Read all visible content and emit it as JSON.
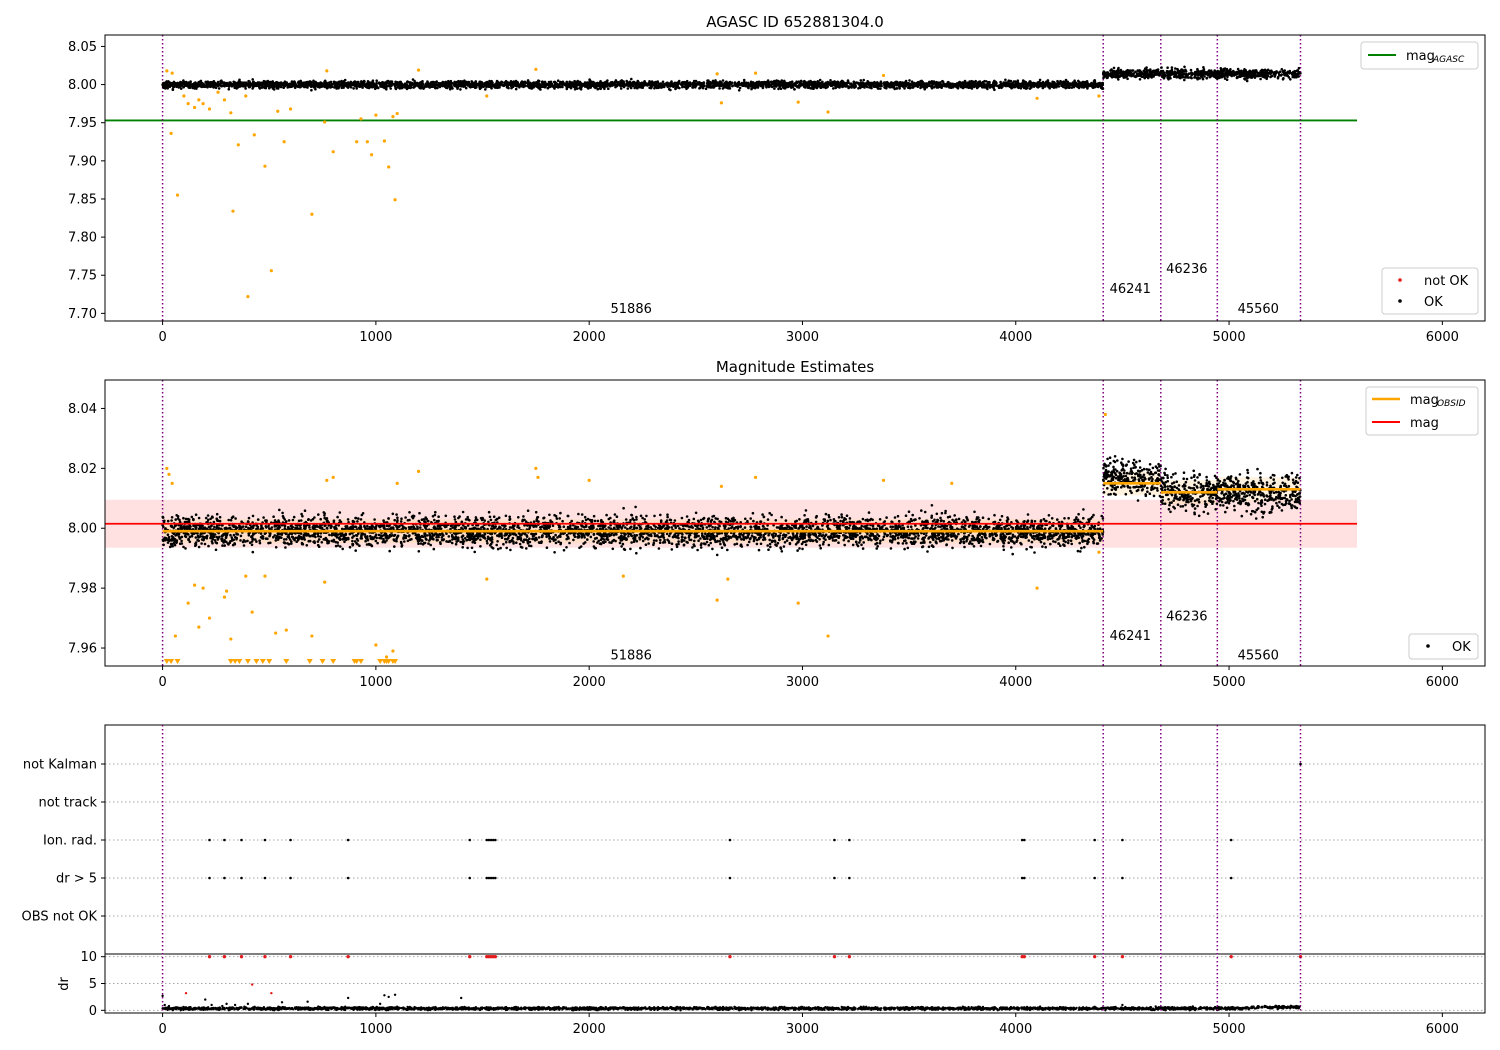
{
  "colors": {
    "ok": "#000000",
    "not_ok": "#e41a1c",
    "orange": "#ffa500",
    "green": "#008000",
    "red": "#ff0000",
    "obs_line": "#800080",
    "band_red": "#ffb3b3",
    "band_orange": "#ffd9a0"
  },
  "chart_data": [
    {
      "id": "agasc",
      "type": "scatter",
      "title": "AGASC ID 652881304.0",
      "xlim": [
        -270,
        6200
      ],
      "ylim": [
        7.69,
        8.065
      ],
      "xticks": [
        0,
        1000,
        2000,
        3000,
        4000,
        5000,
        6000
      ],
      "yticks": [
        7.7,
        7.75,
        7.8,
        7.85,
        7.9,
        7.95,
        8.0,
        8.05
      ],
      "ytick_labels": [
        "7.70",
        "7.75",
        "7.80",
        "7.85",
        "7.90",
        "7.95",
        "8.00",
        "8.05"
      ],
      "obs_lines": [
        0,
        4410,
        4680,
        4945,
        5335
      ],
      "obs_labels": [
        {
          "text": "51886",
          "x": 2100,
          "y": 7.706
        },
        {
          "text": "46241",
          "x": 4440,
          "y": 7.732
        },
        {
          "text": "46236",
          "x": 4705,
          "y": 7.758
        },
        {
          "text": "45560",
          "x": 5040,
          "y": 7.706
        }
      ],
      "hline": {
        "value": 7.953,
        "x_end": 5600,
        "label": "mag",
        "label_sub": "AGASC"
      },
      "legend_markers": [
        "not OK",
        "OK"
      ],
      "bands": [
        {
          "x0": 0,
          "x1": 4410,
          "mean": 8.0,
          "spread": 0.006
        },
        {
          "x0": 4410,
          "x1": 5335,
          "mean": 8.014,
          "spread": 0.008
        }
      ],
      "outliers": [
        [
          40,
          7.936
        ],
        [
          70,
          7.855
        ],
        [
          100,
          7.985
        ],
        [
          120,
          7.975
        ],
        [
          150,
          7.97
        ],
        [
          170,
          7.98
        ],
        [
          190,
          7.975
        ],
        [
          220,
          7.968
        ],
        [
          260,
          7.99
        ],
        [
          290,
          7.98
        ],
        [
          320,
          7.963
        ],
        [
          330,
          7.834
        ],
        [
          355,
          7.921
        ],
        [
          390,
          7.985
        ],
        [
          400,
          7.722
        ],
        [
          430,
          7.934
        ],
        [
          480,
          7.893
        ],
        [
          510,
          7.756
        ],
        [
          540,
          7.965
        ],
        [
          570,
          7.925
        ],
        [
          600,
          7.968
        ],
        [
          700,
          7.83
        ],
        [
          760,
          7.951
        ],
        [
          800,
          7.912
        ],
        [
          910,
          7.925
        ],
        [
          930,
          7.955
        ],
        [
          960,
          7.925
        ],
        [
          980,
          7.908
        ],
        [
          1000,
          7.96
        ],
        [
          1040,
          7.926
        ],
        [
          1060,
          7.892
        ],
        [
          1080,
          7.958
        ],
        [
          1090,
          7.849
        ],
        [
          1100,
          7.962
        ],
        [
          1520,
          7.985
        ],
        [
          2620,
          7.976
        ],
        [
          2980,
          7.977
        ],
        [
          3120,
          7.964
        ],
        [
          4100,
          7.982
        ],
        [
          4390,
          7.985
        ],
        [
          20,
          8.018
        ],
        [
          45,
          8.015
        ],
        [
          770,
          8.018
        ],
        [
          1200,
          8.019
        ],
        [
          1750,
          8.02
        ],
        [
          2600,
          8.014
        ],
        [
          2780,
          8.015
        ],
        [
          3380,
          8.012
        ]
      ]
    },
    {
      "id": "estimates",
      "type": "scatter",
      "title": "Magnitude Estimates",
      "xlim": [
        -270,
        6200
      ],
      "ylim": [
        7.954,
        8.0495
      ],
      "xticks": [
        0,
        1000,
        2000,
        3000,
        4000,
        5000,
        6000
      ],
      "yticks": [
        7.96,
        7.98,
        8.0,
        8.02,
        8.04
      ],
      "ytick_labels": [
        "7.96",
        "7.98",
        "8.00",
        "8.02",
        "8.04"
      ],
      "obs_lines": [
        0,
        4410,
        4680,
        4945,
        5335
      ],
      "obs_labels": [
        {
          "text": "51886",
          "x": 2100,
          "y": 7.9575
        },
        {
          "text": "46241",
          "x": 4440,
          "y": 7.964
        },
        {
          "text": "46236",
          "x": 4705,
          "y": 7.9705
        },
        {
          "text": "45560",
          "x": 5040,
          "y": 7.9575
        }
      ],
      "mag_line": {
        "value": 8.0015,
        "x_end": 5600,
        "band": [
          7.9935,
          8.0095
        ],
        "label": "mag"
      },
      "obsid_segments": [
        {
          "x0": 0,
          "x1": 4410,
          "value": 7.999
        },
        {
          "x0": 4410,
          "x1": 4680,
          "value": 8.015
        },
        {
          "x0": 4680,
          "x1": 4945,
          "value": 8.012
        },
        {
          "x0": 4945,
          "x1": 5335,
          "value": 8.013
        }
      ],
      "obsid_label": "mag",
      "obsid_label_sub": "OBSID",
      "legend_markers": [
        "OK"
      ],
      "outliers": [
        [
          20,
          8.02
        ],
        [
          30,
          8.018
        ],
        [
          45,
          8.015
        ],
        [
          60,
          7.964
        ],
        [
          120,
          7.975
        ],
        [
          150,
          7.981
        ],
        [
          170,
          7.967
        ],
        [
          190,
          7.98
        ],
        [
          220,
          7.97
        ],
        [
          290,
          7.977
        ],
        [
          300,
          7.979
        ],
        [
          320,
          7.963
        ],
        [
          390,
          7.984
        ],
        [
          420,
          7.972
        ],
        [
          480,
          7.984
        ],
        [
          530,
          7.965
        ],
        [
          580,
          7.966
        ],
        [
          700,
          7.964
        ],
        [
          760,
          7.982
        ],
        [
          770,
          8.016
        ],
        [
          800,
          8.017
        ],
        [
          1000,
          7.961
        ],
        [
          1050,
          7.957
        ],
        [
          1080,
          7.959
        ],
        [
          1100,
          8.015
        ],
        [
          1200,
          8.019
        ],
        [
          1520,
          7.983
        ],
        [
          1750,
          8.02
        ],
        [
          1760,
          8.017
        ],
        [
          2000,
          8.016
        ],
        [
          2160,
          7.984
        ],
        [
          2600,
          7.976
        ],
        [
          2620,
          8.014
        ],
        [
          2650,
          7.983
        ],
        [
          2780,
          8.017
        ],
        [
          2980,
          7.975
        ],
        [
          3120,
          7.964
        ],
        [
          3380,
          8.016
        ],
        [
          3700,
          8.015
        ],
        [
          4100,
          7.98
        ],
        [
          4390,
          7.992
        ],
        [
          4420,
          8.038
        ]
      ],
      "lower_limits": [
        20,
        40,
        70,
        320,
        340,
        360,
        400,
        440,
        470,
        500,
        580,
        690,
        750,
        800,
        900,
        910,
        930,
        1020,
        1040,
        1050,
        1060,
        1080,
        1090
      ],
      "bands": [
        {
          "x0": 0,
          "x1": 4410,
          "mean": 7.999,
          "spread": 0.0065
        },
        {
          "x0": 4410,
          "x1": 4680,
          "mean": 8.017,
          "spread": 0.0075
        },
        {
          "x0": 4680,
          "x1": 4945,
          "mean": 8.012,
          "spread": 0.0075
        },
        {
          "x0": 4945,
          "x1": 5335,
          "mean": 8.012,
          "spread": 0.0085
        }
      ]
    },
    {
      "id": "flags",
      "type": "scatter",
      "xlim": [
        -270,
        6200
      ],
      "xticks": [
        0,
        1000,
        2000,
        3000,
        4000,
        5000,
        6000
      ],
      "categories": [
        "not Kalman",
        "not track",
        "Ion. rad.",
        "dr > 5",
        "OBS not OK"
      ],
      "obs_lines": [
        0,
        4410,
        4680,
        4945,
        5335
      ],
      "flag_x": [
        220,
        290,
        370,
        480,
        600,
        870,
        1440,
        1520,
        1530,
        1540,
        1550,
        1560,
        2660,
        3150,
        3220,
        4030,
        4040,
        4370,
        4500,
        5010
      ],
      "not_kalman_x": [
        5335
      ],
      "dr_ylabel": "dr",
      "dr_ylim": [
        -0.5,
        10.5
      ],
      "dr_yticks": [
        0,
        5,
        10
      ],
      "dr_ytick_labels": [
        "0",
        "5",
        "10"
      ],
      "dr_outliers": [
        [
          0,
          2.7
        ],
        [
          10,
          1.0
        ],
        [
          30,
          0.8
        ],
        [
          110,
          3.2
        ],
        [
          200,
          2.0
        ],
        [
          230,
          1.0
        ],
        [
          280,
          0.8
        ],
        [
          300,
          1.2
        ],
        [
          340,
          1.0
        ],
        [
          400,
          1.2
        ],
        [
          420,
          4.8
        ],
        [
          510,
          3.2
        ],
        [
          560,
          1.5
        ],
        [
          680,
          1.6
        ],
        [
          730,
          0.7
        ],
        [
          870,
          2.3
        ],
        [
          1020,
          1.2
        ],
        [
          1040,
          2.8
        ],
        [
          1060,
          2.5
        ],
        [
          1090,
          2.9
        ],
        [
          1400,
          2.3
        ],
        [
          4500,
          1.0
        ]
      ],
      "dr_capped_x": [
        220,
        290,
        370,
        480,
        600,
        870,
        1440,
        1520,
        1530,
        1540,
        1550,
        1560,
        2660,
        3150,
        3220,
        4030,
        4040,
        4370,
        4500,
        5010,
        5335
      ]
    }
  ]
}
